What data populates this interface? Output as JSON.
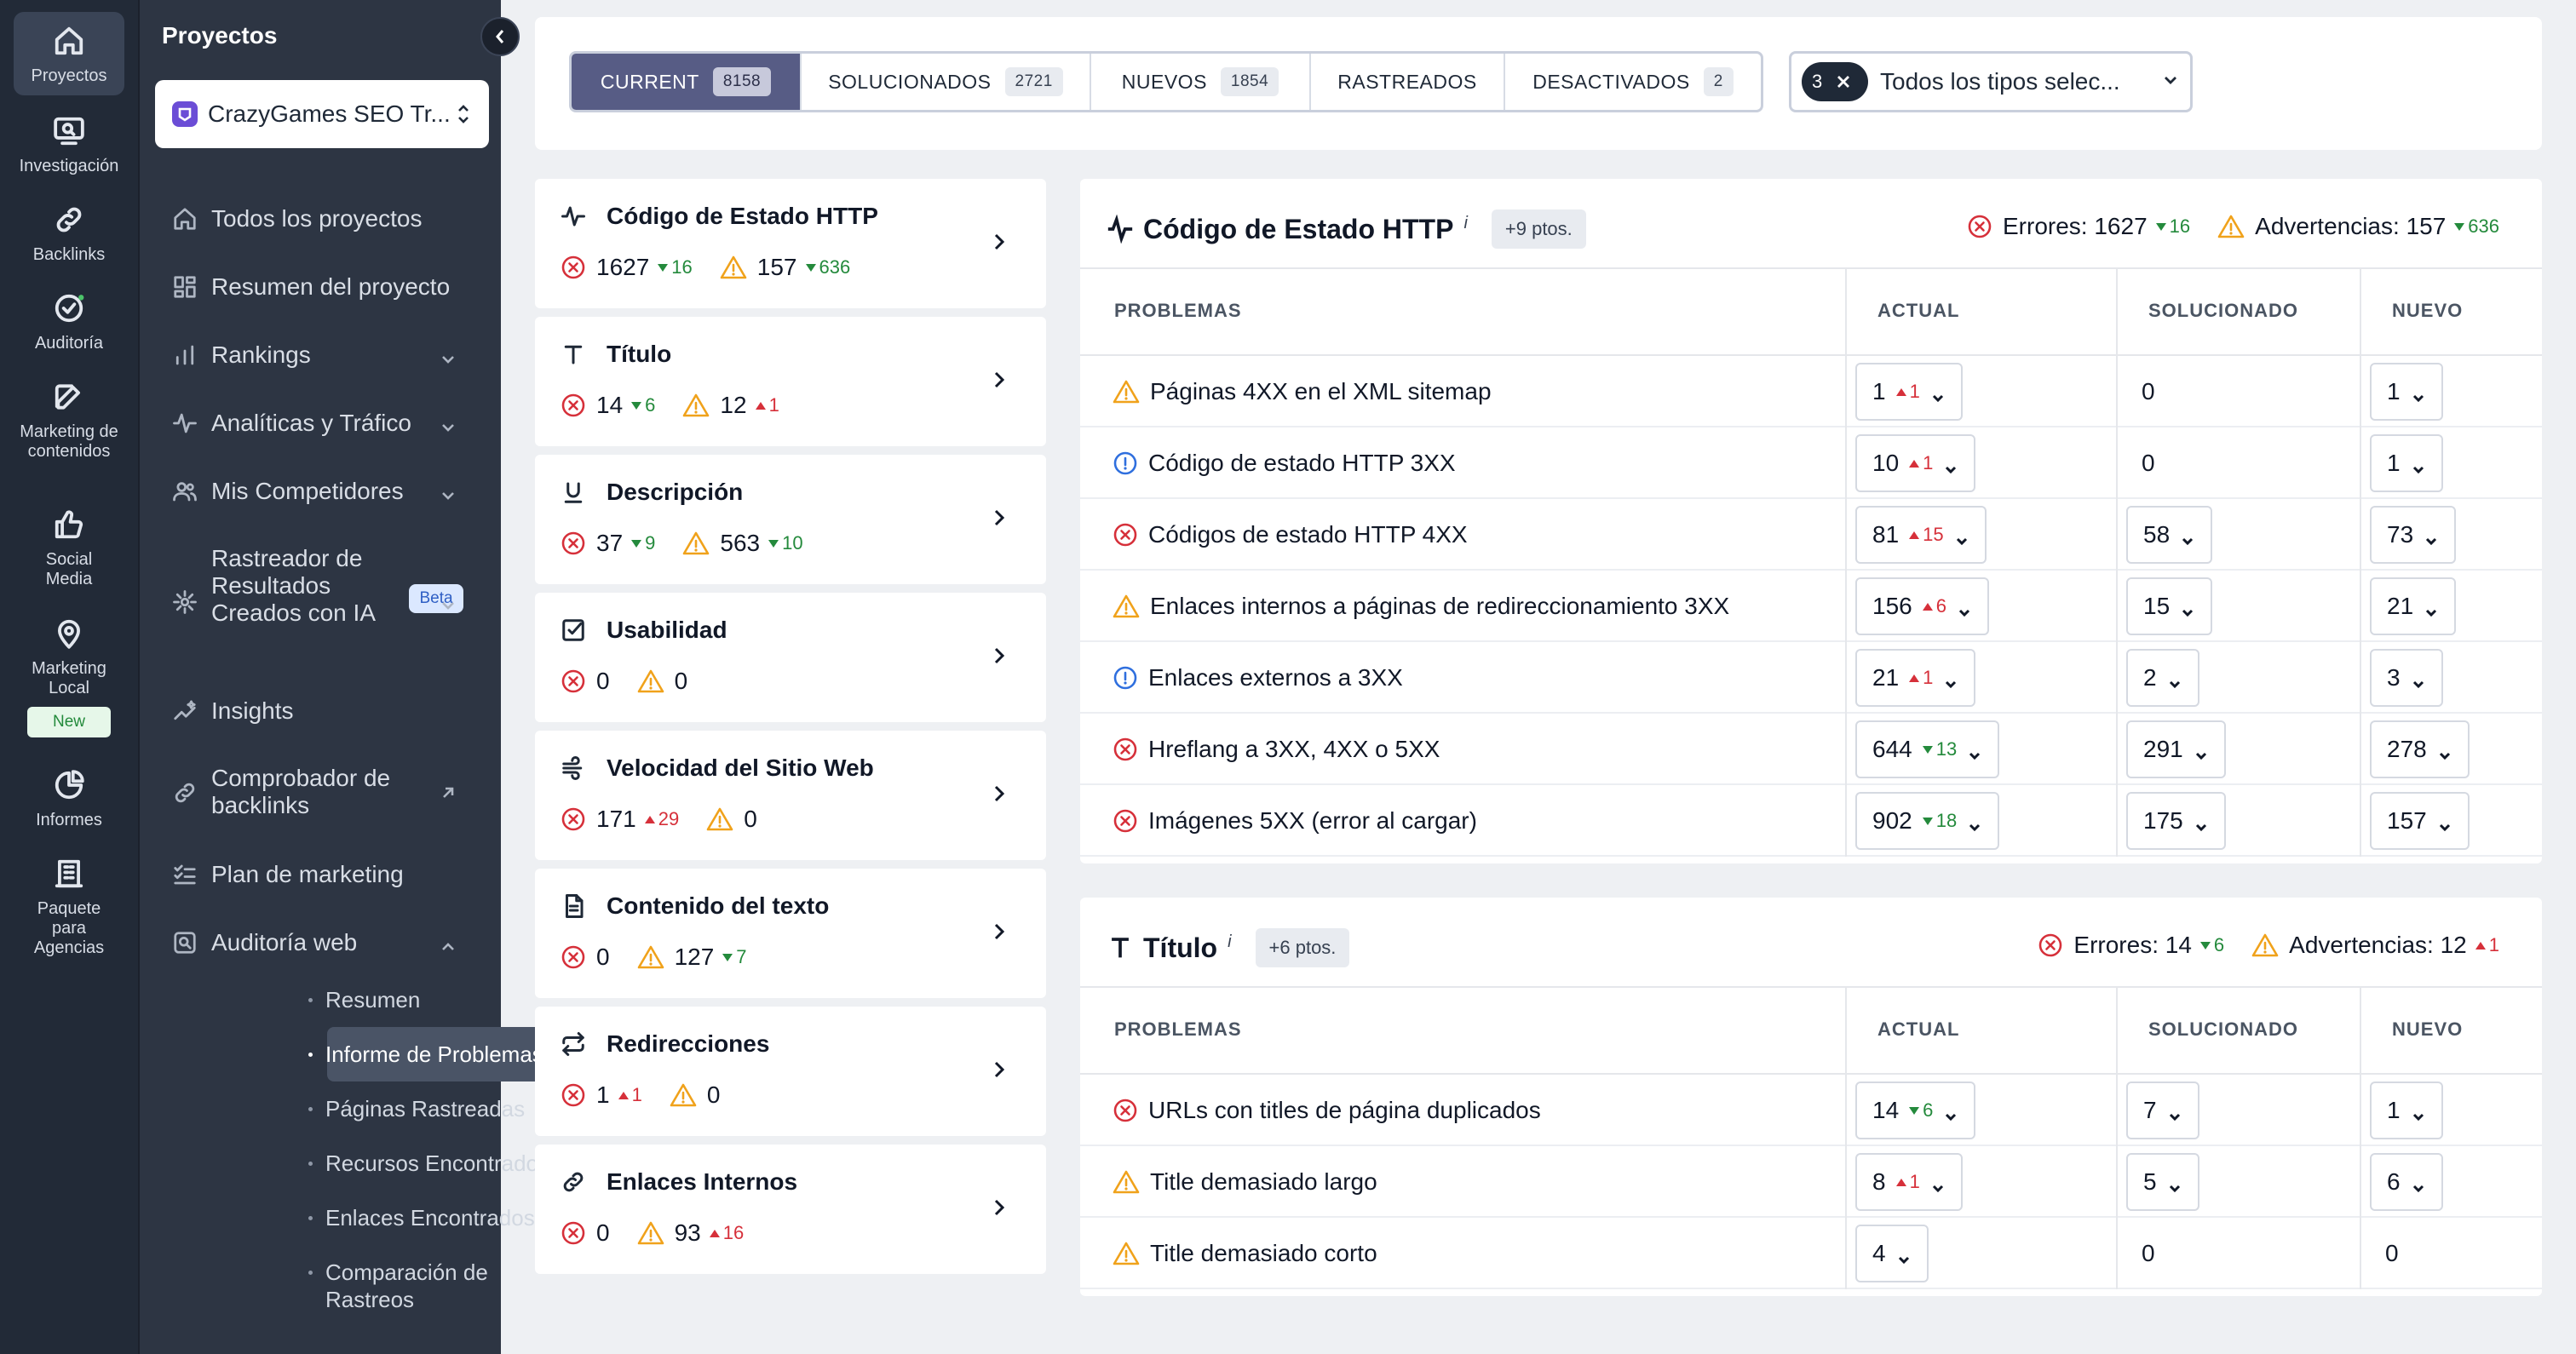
{
  "rail": {
    "items": [
      {
        "label": "Proyectos",
        "icon": "home-icon"
      },
      {
        "label": "Investigación",
        "icon": "monitor-search-icon"
      },
      {
        "label": "Backlinks",
        "icon": "link-icon"
      },
      {
        "label": "Auditoría",
        "icon": "check-circle-icon"
      },
      {
        "label": "Marketing de contenidos",
        "icon": "edit-icon"
      },
      {
        "label": "Social Media",
        "icon": "thumbs-up-icon"
      },
      {
        "label": "Marketing Local",
        "icon": "map-pin-icon"
      },
      {
        "label": "Informes",
        "icon": "pie-chart-icon"
      },
      {
        "label": "Paquete para Agencias",
        "icon": "building-icon"
      }
    ],
    "new_badge": "New"
  },
  "sidebar": {
    "title": "Proyectos",
    "project_name": "CrazyGames SEO Tr...",
    "nav": [
      {
        "label": "Todos los proyectos",
        "icon": "home-icon"
      },
      {
        "label": "Resumen del proyecto",
        "icon": "dashboard-icon"
      },
      {
        "label": "Rankings",
        "icon": "bar-chart-icon"
      },
      {
        "label": "Analíticas y Tráfico",
        "icon": "activity-icon"
      },
      {
        "label": "Mis Competidores",
        "icon": "users-icon"
      },
      {
        "label": "Rastreador de Resultados Creados con IA",
        "icon": "ai-icon",
        "badge": "Beta"
      },
      {
        "label": "Insights",
        "icon": "sparkle-chart-icon"
      },
      {
        "label": "Comprobador de backlinks",
        "icon": "link-icon"
      },
      {
        "label": "Plan de marketing",
        "icon": "checklist-icon"
      },
      {
        "label": "Auditoría web",
        "icon": "audit-icon"
      }
    ],
    "sub": [
      {
        "label": "Resumen"
      },
      {
        "label": "Informe de Problemas"
      },
      {
        "label": "Páginas Rastreadas"
      },
      {
        "label": "Recursos Encontrados"
      },
      {
        "label": "Enlaces Encontrados"
      },
      {
        "label": "Comparación de Rastreos"
      }
    ]
  },
  "filters": {
    "tabs": [
      {
        "label": "CURRENT",
        "count": "8158"
      },
      {
        "label": "SOLUCIONADOS",
        "count": "2721"
      },
      {
        "label": "NUEVOS",
        "count": "1854"
      },
      {
        "label": "RASTREADOS",
        "count": ""
      },
      {
        "label": "DESACTIVADOS",
        "count": "2"
      }
    ],
    "types_chip": "3",
    "types_label": "Todos los tipos selec..."
  },
  "categories": [
    {
      "title": "Código de Estado HTTP",
      "icon": "activity-icon",
      "errors": "1627",
      "err_delta": "16",
      "err_dir": "down",
      "warnings": "157",
      "warn_delta": "636",
      "warn_dir": "down"
    },
    {
      "title": "Título",
      "icon": "title-t-icon",
      "errors": "14",
      "err_delta": "6",
      "err_dir": "down",
      "warnings": "12",
      "warn_delta": "1",
      "warn_dir": "up"
    },
    {
      "title": "Descripción",
      "icon": "underline-icon",
      "errors": "37",
      "err_delta": "9",
      "err_dir": "down",
      "warnings": "563",
      "warn_delta": "10",
      "warn_dir": "down"
    },
    {
      "title": "Usabilidad",
      "icon": "checkbox-icon",
      "errors": "0",
      "err_delta": "",
      "err_dir": "",
      "warnings": "0",
      "warn_delta": "",
      "warn_dir": ""
    },
    {
      "title": "Velocidad del Sitio Web",
      "icon": "wind-icon",
      "errors": "171",
      "err_delta": "29",
      "err_dir": "up",
      "warnings": "0",
      "warn_delta": "",
      "warn_dir": ""
    },
    {
      "title": "Contenido del texto",
      "icon": "document-icon",
      "errors": "0",
      "err_delta": "",
      "err_dir": "",
      "warnings": "127",
      "warn_delta": "7",
      "warn_dir": "down"
    },
    {
      "title": "Redirecciones",
      "icon": "repeat-icon",
      "errors": "1",
      "err_delta": "1",
      "err_dir": "up",
      "warnings": "0",
      "warn_delta": "",
      "warn_dir": ""
    },
    {
      "title": "Enlaces Internos",
      "icon": "link-icon",
      "errors": "0",
      "err_delta": "",
      "err_dir": "",
      "warnings": "93",
      "warn_delta": "16",
      "warn_dir": "up"
    }
  ],
  "sections": [
    {
      "title": "Código de Estado HTTP",
      "sup": "i",
      "points": "+9 ptos.",
      "errors_label": "Errores:",
      "errors": "1627",
      "err_delta": "16",
      "err_dir": "down",
      "warnings_label": "Advertencias:",
      "warnings": "157",
      "warn_delta": "636",
      "warn_dir": "down",
      "headers": [
        "PROBLEMAS",
        "ACTUAL",
        "SOLUCIONADO",
        "NUEVO"
      ],
      "rows": [
        {
          "type": "warning",
          "name": "Páginas 4XX en el XML sitemap",
          "actual": "1",
          "delta": "1",
          "dir": "up",
          "fixed": "0",
          "fixed_dd": false,
          "new": "1",
          "new_dd": true
        },
        {
          "type": "info",
          "name": "Código de estado HTTP 3XX",
          "actual": "10",
          "delta": "1",
          "dir": "up",
          "fixed": "0",
          "fixed_dd": false,
          "new": "1",
          "new_dd": true
        },
        {
          "type": "error",
          "name": "Códigos de estado HTTP 4XX",
          "actual": "81",
          "delta": "15",
          "dir": "up",
          "fixed": "58",
          "fixed_dd": true,
          "new": "73",
          "new_dd": true
        },
        {
          "type": "warning",
          "name": "Enlaces internos a páginas de redireccionamiento 3XX",
          "actual": "156",
          "delta": "6",
          "dir": "up",
          "fixed": "15",
          "fixed_dd": true,
          "new": "21",
          "new_dd": true
        },
        {
          "type": "info",
          "name": "Enlaces externos a 3XX",
          "actual": "21",
          "delta": "1",
          "dir": "up",
          "fixed": "2",
          "fixed_dd": true,
          "new": "3",
          "new_dd": true
        },
        {
          "type": "error",
          "name": "Hreflang a 3XX, 4XX o 5XX",
          "actual": "644",
          "delta": "13",
          "dir": "down",
          "fixed": "291",
          "fixed_dd": true,
          "new": "278",
          "new_dd": true
        },
        {
          "type": "error",
          "name": "Imágenes 5XX (error al cargar)",
          "actual": "902",
          "delta": "18",
          "dir": "down",
          "fixed": "175",
          "fixed_dd": true,
          "new": "157",
          "new_dd": true
        }
      ]
    },
    {
      "title": "Título",
      "sup": "i",
      "points": "+6 ptos.",
      "errors_label": "Errores:",
      "errors": "14",
      "err_delta": "6",
      "err_dir": "down",
      "warnings_label": "Advertencias:",
      "warnings": "12",
      "warn_delta": "1",
      "warn_dir": "up",
      "headers": [
        "PROBLEMAS",
        "ACTUAL",
        "SOLUCIONADO",
        "NUEVO"
      ],
      "rows": [
        {
          "type": "error",
          "name": "URLs con titles de página duplicados",
          "actual": "14",
          "delta": "6",
          "dir": "down",
          "fixed": "7",
          "fixed_dd": true,
          "new": "1",
          "new_dd": true
        },
        {
          "type": "warning",
          "name": "Title demasiado largo",
          "actual": "8",
          "delta": "1",
          "dir": "up",
          "fixed": "5",
          "fixed_dd": true,
          "new": "6",
          "new_dd": true
        },
        {
          "type": "warning",
          "name": "Title demasiado corto",
          "actual": "4",
          "delta": "",
          "dir": "",
          "fixed": "0",
          "fixed_dd": false,
          "new": "0",
          "new_dd": false
        }
      ]
    }
  ]
}
